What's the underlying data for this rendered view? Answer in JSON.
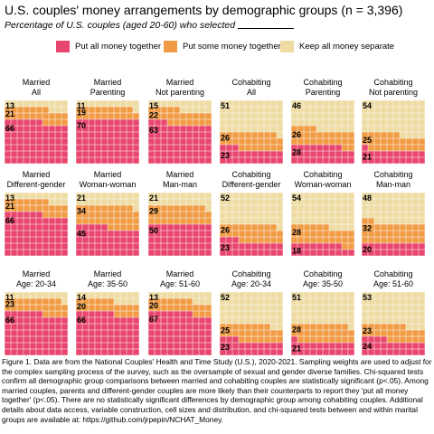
{
  "title": "U.S. couples' money arrangements by demographic groups (n = 3,396)",
  "subtitle": "Percentage of U.S. couples (aged 20-60) who selected",
  "legend": [
    {
      "label": "Put all money together",
      "color": "#e8466e"
    },
    {
      "label": "Put some money together",
      "color": "#f19c45"
    },
    {
      "label": "Keep all money separate",
      "color": "#eedca3"
    }
  ],
  "caption": "Figure 1. Data are from the National Couples' Health and Time Study (U.S.), 2020-2021. Sampling weights are used to adjust for the complex sampling process of the survey, such as the oversample of sexual and gender diverse families. Chi-squared tests confirm all demographic group comparisons between married and cohabiting couples are statistically significant (p<.05). Among married couples, parents and different-gender couples are more likely than their counterparts to report they 'put all money together' (p<.05). There are no statistically significant differences by demographic group among cohabiting couples. Additional details about data access, variable construction, cell sizes and distribution, and chi-squared tests between and within marital groups are available at: https://github.com/jrpepin/NCHAT_Money.",
  "chart_data": {
    "type": "waffle",
    "cells_per_panel": 100,
    "series_order": [
      "Put all money together",
      "Put some money together",
      "Keep all money separate"
    ],
    "panels": [
      {
        "title": [
          "Married",
          "All"
        ],
        "all": 66,
        "some": 21,
        "separate": 13
      },
      {
        "title": [
          "Married",
          "Parenting"
        ],
        "all": 70,
        "some": 19,
        "separate": 11
      },
      {
        "title": [
          "Married",
          "Not parenting"
        ],
        "all": 63,
        "some": 22,
        "separate": 15
      },
      {
        "title": [
          "Cohabiting",
          "All"
        ],
        "all": 23,
        "some": 26,
        "separate": 51
      },
      {
        "title": [
          "Cohabiting",
          "Parenting"
        ],
        "all": 28,
        "some": 26,
        "separate": 46
      },
      {
        "title": [
          "Cohabiting",
          "Not parenting"
        ],
        "all": 21,
        "some": 25,
        "separate": 54
      },
      {
        "title": [
          "Married",
          "Different-gender"
        ],
        "all": 66,
        "some": 21,
        "separate": 13
      },
      {
        "title": [
          "Married",
          "Woman-woman"
        ],
        "all": 45,
        "some": 34,
        "separate": 21
      },
      {
        "title": [
          "Married",
          "Man-man"
        ],
        "all": 50,
        "some": 29,
        "separate": 21
      },
      {
        "title": [
          "Cohabiting",
          "Different-gender"
        ],
        "all": 23,
        "some": 26,
        "separate": 52
      },
      {
        "title": [
          "Cohabiting",
          "Woman-woman"
        ],
        "all": 18,
        "some": 28,
        "separate": 54
      },
      {
        "title": [
          "Cohabiting",
          "Man-man"
        ],
        "all": 20,
        "some": 32,
        "separate": 48
      },
      {
        "title": [
          "Married",
          "Age: 20-34"
        ],
        "all": 66,
        "some": 23,
        "separate": 11
      },
      {
        "title": [
          "Married",
          "Age: 35-50"
        ],
        "all": 66,
        "some": 20,
        "separate": 14
      },
      {
        "title": [
          "Married",
          "Age: 51-60"
        ],
        "all": 67,
        "some": 20,
        "separate": 13
      },
      {
        "title": [
          "Cohabiting",
          "Age: 20-34"
        ],
        "all": 23,
        "some": 25,
        "separate": 52
      },
      {
        "title": [
          "Cohabiting",
          "Age: 35-50"
        ],
        "all": 21,
        "some": 28,
        "separate": 51
      },
      {
        "title": [
          "Cohabiting",
          "Age: 51-60"
        ],
        "all": 24,
        "some": 23,
        "separate": 53
      }
    ]
  }
}
